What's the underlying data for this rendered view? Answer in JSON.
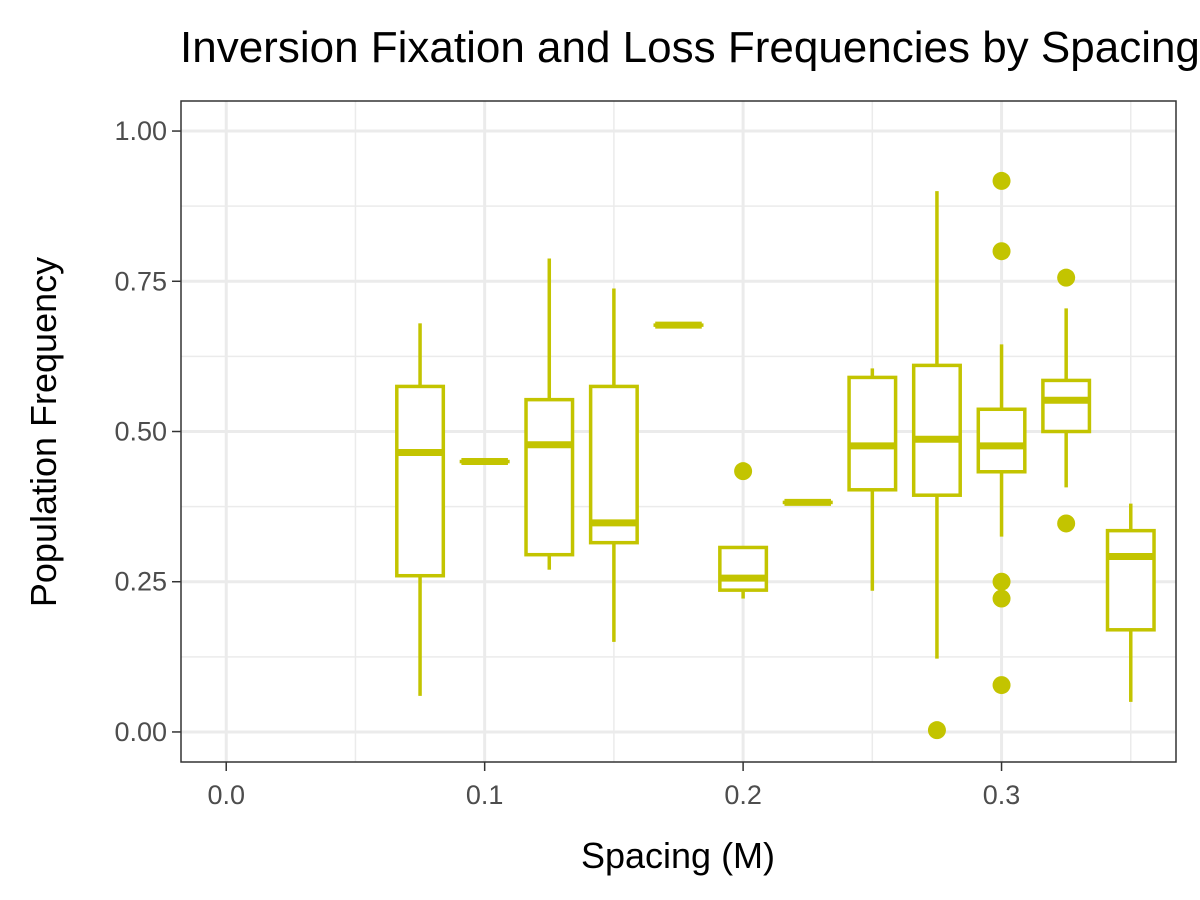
{
  "chart_data": {
    "type": "boxplot",
    "title": "Inversion Fixation and Loss Frequencies by Spacing",
    "xlabel": "Spacing (M)",
    "ylabel": "Population Frequency",
    "xlim": [
      -0.0175,
      0.3675
    ],
    "ylim": [
      -0.05,
      1.05
    ],
    "x_ticks": [
      {
        "value": 0.0,
        "label": "0.0"
      },
      {
        "value": 0.1,
        "label": "0.1"
      },
      {
        "value": 0.2,
        "label": "0.2"
      },
      {
        "value": 0.3,
        "label": "0.3"
      }
    ],
    "x_minor_ticks": [
      0.05,
      0.15,
      0.25,
      0.35
    ],
    "y_ticks": [
      {
        "value": 0.0,
        "label": "0.00"
      },
      {
        "value": 0.25,
        "label": "0.25"
      },
      {
        "value": 0.5,
        "label": "0.50"
      },
      {
        "value": 0.75,
        "label": "0.75"
      },
      {
        "value": 1.0,
        "label": "1.00"
      }
    ],
    "y_minor_ticks": [
      0.125,
      0.375,
      0.625,
      0.875
    ],
    "grid": true,
    "box_width": 0.018,
    "box_color": "#c3c400",
    "boxes": [
      {
        "x": 0.075,
        "lower_whisker": 0.06,
        "q1": 0.26,
        "median": 0.465,
        "q3": 0.575,
        "upper_whisker": 0.68,
        "outliers": []
      },
      {
        "x": 0.1,
        "lower_whisker": 0.45,
        "q1": 0.45,
        "median": 0.45,
        "q3": 0.45,
        "upper_whisker": 0.45,
        "outliers": []
      },
      {
        "x": 0.125,
        "lower_whisker": 0.27,
        "q1": 0.295,
        "median": 0.478,
        "q3": 0.553,
        "upper_whisker": 0.788,
        "outliers": []
      },
      {
        "x": 0.15,
        "lower_whisker": 0.15,
        "q1": 0.315,
        "median": 0.348,
        "q3": 0.575,
        "upper_whisker": 0.738,
        "outliers": []
      },
      {
        "x": 0.175,
        "lower_whisker": 0.677,
        "q1": 0.677,
        "median": 0.677,
        "q3": 0.677,
        "upper_whisker": 0.677,
        "outliers": []
      },
      {
        "x": 0.2,
        "lower_whisker": 0.222,
        "q1": 0.236,
        "median": 0.256,
        "q3": 0.307,
        "upper_whisker": 0.307,
        "outliers": [
          0.434
        ]
      },
      {
        "x": 0.225,
        "lower_whisker": 0.382,
        "q1": 0.382,
        "median": 0.382,
        "q3": 0.382,
        "upper_whisker": 0.382,
        "outliers": []
      },
      {
        "x": 0.25,
        "lower_whisker": 0.235,
        "q1": 0.403,
        "median": 0.476,
        "q3": 0.59,
        "upper_whisker": 0.605,
        "outliers": []
      },
      {
        "x": 0.275,
        "lower_whisker": 0.122,
        "q1": 0.394,
        "median": 0.487,
        "q3": 0.61,
        "upper_whisker": 0.9,
        "outliers": [
          0.003
        ]
      },
      {
        "x": 0.3,
        "lower_whisker": 0.325,
        "q1": 0.433,
        "median": 0.476,
        "q3": 0.537,
        "upper_whisker": 0.645,
        "outliers": [
          0.917,
          0.8,
          0.25,
          0.222,
          0.078
        ]
      },
      {
        "x": 0.325,
        "lower_whisker": 0.407,
        "q1": 0.5,
        "median": 0.552,
        "q3": 0.585,
        "upper_whisker": 0.705,
        "outliers": [
          0.756,
          0.347
        ]
      },
      {
        "x": 0.35,
        "lower_whisker": 0.05,
        "q1": 0.17,
        "median": 0.292,
        "q3": 0.335,
        "upper_whisker": 0.38,
        "outliers": []
      }
    ]
  }
}
